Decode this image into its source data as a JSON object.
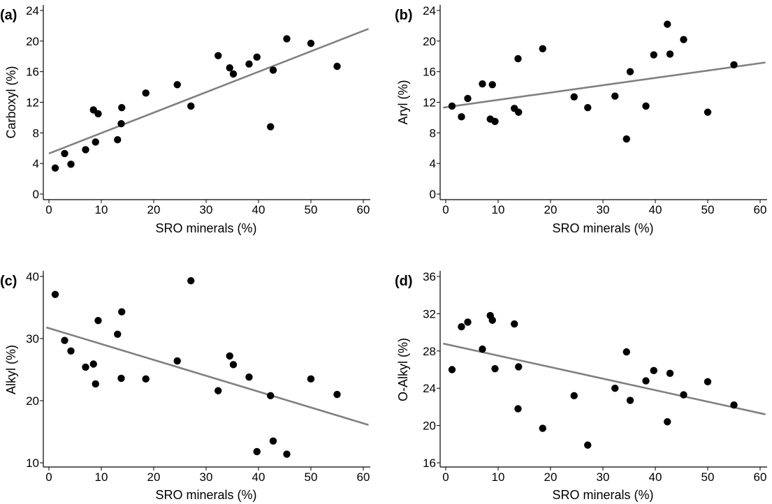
{
  "chart_data": [
    {
      "type": "scatter",
      "panel_label": "(a)",
      "xlabel": "SRO minerals (%)",
      "ylabel": "Carboxyl (%)",
      "xlim": [
        0,
        60
      ],
      "ylim": [
        0,
        24
      ],
      "xticks": [
        0,
        10,
        20,
        30,
        40,
        50,
        60
      ],
      "yticks": [
        0,
        4,
        8,
        12,
        16,
        20,
        24
      ],
      "grid": false,
      "points": [
        [
          1.2,
          3.4
        ],
        [
          3.0,
          5.3
        ],
        [
          4.2,
          3.9
        ],
        [
          7.0,
          5.8
        ],
        [
          8.5,
          11.0
        ],
        [
          8.9,
          6.8
        ],
        [
          9.4,
          10.5
        ],
        [
          13.1,
          7.1
        ],
        [
          13.9,
          11.3
        ],
        [
          13.8,
          9.2
        ],
        [
          18.5,
          13.2
        ],
        [
          24.5,
          14.3
        ],
        [
          27.1,
          11.5
        ],
        [
          32.3,
          18.1
        ],
        [
          34.5,
          16.5
        ],
        [
          35.2,
          15.7
        ],
        [
          38.2,
          17.0
        ],
        [
          39.7,
          17.9
        ],
        [
          42.3,
          8.8
        ],
        [
          42.8,
          16.2
        ],
        [
          45.4,
          20.3
        ],
        [
          50.0,
          19.7
        ],
        [
          55.0,
          16.7
        ]
      ],
      "fit_line": [
        [
          0,
          5.3
        ],
        [
          61,
          21.6
        ]
      ]
    },
    {
      "type": "scatter",
      "panel_label": "(b)",
      "xlabel": "SRO minerals (%)",
      "ylabel": "Aryl (%)",
      "xlim": [
        0,
        60
      ],
      "ylim": [
        0,
        24
      ],
      "xticks": [
        0,
        10,
        20,
        30,
        40,
        50,
        60
      ],
      "yticks": [
        0,
        4,
        8,
        12,
        16,
        20,
        24
      ],
      "grid": false,
      "points": [
        [
          1.2,
          11.5
        ],
        [
          3.0,
          10.1
        ],
        [
          4.2,
          12.5
        ],
        [
          7.0,
          14.4
        ],
        [
          8.5,
          9.8
        ],
        [
          8.9,
          14.3
        ],
        [
          9.4,
          9.5
        ],
        [
          13.1,
          11.2
        ],
        [
          13.9,
          10.7
        ],
        [
          13.8,
          17.7
        ],
        [
          18.5,
          19.0
        ],
        [
          24.5,
          12.7
        ],
        [
          27.1,
          11.3
        ],
        [
          32.3,
          12.8
        ],
        [
          34.5,
          7.2
        ],
        [
          35.2,
          16.0
        ],
        [
          38.2,
          11.5
        ],
        [
          39.7,
          18.2
        ],
        [
          42.3,
          22.2
        ],
        [
          42.8,
          18.3
        ],
        [
          45.4,
          20.2
        ],
        [
          50.0,
          10.7
        ],
        [
          55.0,
          16.9
        ]
      ],
      "fit_line": [
        [
          -0.5,
          11.3
        ],
        [
          61,
          17.2
        ]
      ]
    },
    {
      "type": "scatter",
      "panel_label": "(c)",
      "xlabel": "SRO minerals (%)",
      "ylabel": "Alkyl (%)",
      "xlim": [
        0,
        60
      ],
      "ylim": [
        10,
        40
      ],
      "xticks": [
        0,
        10,
        20,
        30,
        40,
        50,
        60
      ],
      "yticks": [
        10,
        20,
        30,
        40
      ],
      "grid": false,
      "points": [
        [
          1.2,
          37.1
        ],
        [
          3.0,
          29.7
        ],
        [
          4.2,
          28.0
        ],
        [
          7.0,
          25.4
        ],
        [
          8.5,
          25.9
        ],
        [
          8.9,
          22.7
        ],
        [
          9.4,
          32.9
        ],
        [
          13.1,
          30.7
        ],
        [
          13.9,
          34.3
        ],
        [
          13.8,
          23.6
        ],
        [
          18.5,
          23.5
        ],
        [
          24.5,
          26.4
        ],
        [
          27.1,
          39.3
        ],
        [
          32.3,
          21.6
        ],
        [
          34.5,
          27.2
        ],
        [
          35.2,
          25.8
        ],
        [
          38.2,
          23.8
        ],
        [
          39.7,
          11.8
        ],
        [
          42.3,
          20.8
        ],
        [
          42.8,
          13.5
        ],
        [
          45.4,
          11.4
        ],
        [
          50.0,
          23.5
        ],
        [
          55.0,
          21.0
        ]
      ],
      "fit_line": [
        [
          -0.5,
          31.8
        ],
        [
          61,
          16.1
        ]
      ]
    },
    {
      "type": "scatter",
      "panel_label": "(d)",
      "xlabel": "SRO minerals (%)",
      "ylabel": "O-Alkyl (%)",
      "xlim": [
        0,
        60
      ],
      "ylim": [
        16,
        36
      ],
      "xticks": [
        0,
        10,
        20,
        30,
        40,
        50,
        60
      ],
      "yticks": [
        16,
        20,
        24,
        28,
        32,
        36
      ],
      "grid": false,
      "points": [
        [
          1.2,
          26.0
        ],
        [
          3.0,
          30.6
        ],
        [
          4.2,
          31.1
        ],
        [
          7.0,
          28.2
        ],
        [
          8.5,
          31.8
        ],
        [
          8.9,
          31.3
        ],
        [
          9.4,
          26.1
        ],
        [
          13.1,
          30.9
        ],
        [
          13.9,
          26.3
        ],
        [
          13.8,
          21.8
        ],
        [
          18.5,
          19.7
        ],
        [
          24.5,
          23.2
        ],
        [
          27.1,
          17.9
        ],
        [
          32.3,
          24.0
        ],
        [
          34.5,
          27.9
        ],
        [
          35.2,
          22.7
        ],
        [
          38.2,
          24.8
        ],
        [
          39.7,
          25.9
        ],
        [
          42.3,
          20.4
        ],
        [
          42.8,
          25.6
        ],
        [
          45.4,
          23.3
        ],
        [
          50.0,
          24.7
        ],
        [
          55.0,
          22.2
        ]
      ],
      "fit_line": [
        [
          -0.5,
          28.8
        ],
        [
          61,
          21.2
        ]
      ]
    }
  ]
}
